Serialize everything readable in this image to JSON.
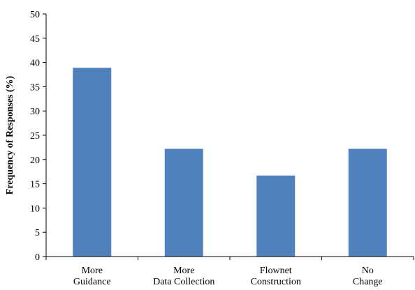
{
  "chart_data": {
    "type": "bar",
    "categories": [
      [
        "More",
        "Guidance"
      ],
      [
        "More",
        "Data Collection"
      ],
      [
        "Flownet",
        "Construction"
      ],
      [
        "No",
        "Change"
      ]
    ],
    "values": [
      38.9,
      22.2,
      16.7,
      22.2
    ],
    "title": "",
    "xlabel": "",
    "ylabel": "Frequency of Responses (%)",
    "ylim": [
      0,
      50
    ],
    "yticks": [
      0,
      5,
      10,
      15,
      20,
      25,
      30,
      35,
      40,
      45,
      50
    ],
    "grid": false,
    "legend": "none",
    "bar_color": "#4F81BD"
  }
}
